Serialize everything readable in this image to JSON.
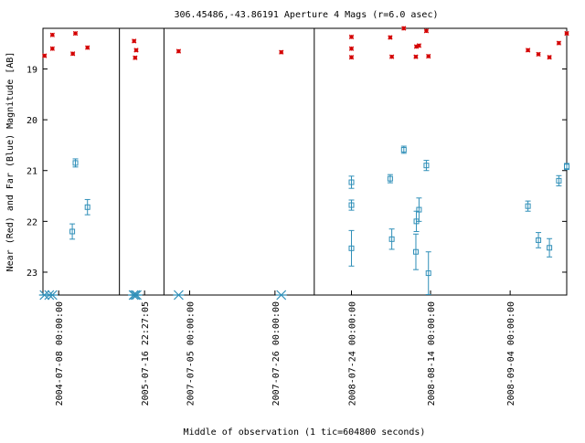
{
  "chart_data": {
    "type": "scatter",
    "title": "306.45486,-43.86191   Aperture 4 Mags (r=6.0 asec)",
    "xlabel": "Middle of observation (1 tic=604800 seconds)",
    "ylabel": "Near (Red) and Far (Blue) Magnitude [AB]",
    "ylim": [
      18.2,
      23.45
    ],
    "y_inverted": true,
    "xlim": [
      0,
      100
    ],
    "y_ticks": [
      19,
      20,
      21,
      22,
      23
    ],
    "x_ticks": [
      {
        "x": 3,
        "label": "2004-07-08 00:00:00"
      },
      {
        "x": 19.4,
        "label": "2005-07-16 22:27:05"
      },
      {
        "x": 28,
        "label": "2007-07-05 00:00:00"
      },
      {
        "x": 44.3,
        "label": "2007-07-26 00:00:00"
      },
      {
        "x": 58.9,
        "label": "2008-07-24 00:00:00"
      },
      {
        "x": 74,
        "label": "2008-08-14 00:00:00"
      },
      {
        "x": 89.2,
        "label": "2008-09-04 00:00:00"
      }
    ],
    "segment_breaks": [
      14.6,
      23.1,
      51.8
    ],
    "series": [
      {
        "name": "Near (Red)",
        "color": "#d40000",
        "marker": "asterisk",
        "points": [
          {
            "x": 0.3,
            "y": 18.74
          },
          {
            "x": 1.8,
            "y": 18.33
          },
          {
            "x": 1.8,
            "y": 18.6
          },
          {
            "x": 5.7,
            "y": 18.7
          },
          {
            "x": 6.2,
            "y": 18.3
          },
          {
            "x": 8.5,
            "y": 18.58
          },
          {
            "x": 17.4,
            "y": 18.45
          },
          {
            "x": 17.6,
            "y": 18.78
          },
          {
            "x": 17.8,
            "y": 18.63
          },
          {
            "x": 25.9,
            "y": 18.65
          },
          {
            "x": 45.5,
            "y": 18.67
          },
          {
            "x": 58.9,
            "y": 18.37
          },
          {
            "x": 58.9,
            "y": 18.6
          },
          {
            "x": 58.9,
            "y": 18.77
          },
          {
            "x": 66.3,
            "y": 18.38
          },
          {
            "x": 66.6,
            "y": 18.76
          },
          {
            "x": 68.9,
            "y": 18.17
          },
          {
            "x": 71.2,
            "y": 18.76
          },
          {
            "x": 71.3,
            "y": 18.56
          },
          {
            "x": 71.8,
            "y": 18.54
          },
          {
            "x": 73.2,
            "y": 18.25
          },
          {
            "x": 73.6,
            "y": 18.75
          },
          {
            "x": 92.6,
            "y": 18.63
          },
          {
            "x": 94.6,
            "y": 18.71
          },
          {
            "x": 96.7,
            "y": 18.77
          },
          {
            "x": 98.5,
            "y": 18.49
          },
          {
            "x": 101,
            "y": 18.3
          }
        ]
      },
      {
        "name": "Far (Blue)",
        "color": "#2f8fb8",
        "marker": "square",
        "points": [
          {
            "x": 5.6,
            "y": 22.2,
            "err": 0.15
          },
          {
            "x": 6.2,
            "y": 20.85,
            "err": 0.08
          },
          {
            "x": 8.5,
            "y": 21.72,
            "err": 0.15
          },
          {
            "x": 58.9,
            "y": 21.23,
            "err": 0.12
          },
          {
            "x": 58.9,
            "y": 21.68,
            "err": 0.1
          },
          {
            "x": 58.9,
            "y": 22.53,
            "err": 0.35
          },
          {
            "x": 66.3,
            "y": 21.16,
            "err": 0.08
          },
          {
            "x": 66.6,
            "y": 22.35,
            "err": 0.2
          },
          {
            "x": 68.9,
            "y": 20.59,
            "err": 0.07
          },
          {
            "x": 71.2,
            "y": 22.6,
            "err": 0.35
          },
          {
            "x": 71.3,
            "y": 22.0,
            "err": 0.2
          },
          {
            "x": 71.8,
            "y": 21.77,
            "err": 0.23
          },
          {
            "x": 73.2,
            "y": 20.9,
            "err": 0.1
          },
          {
            "x": 73.6,
            "y": 23.02,
            "err": 0.42
          },
          {
            "x": 92.6,
            "y": 21.7,
            "err": 0.1
          },
          {
            "x": 94.6,
            "y": 22.37,
            "err": 0.15
          },
          {
            "x": 96.7,
            "y": 22.52,
            "err": 0.18
          },
          {
            "x": 98.5,
            "y": 21.2,
            "err": 0.1
          },
          {
            "x": 101,
            "y": 20.92,
            "err": 0.06
          }
        ]
      },
      {
        "name": "Upper limits",
        "color": "#2f8fb8",
        "marker": "star",
        "points": [
          {
            "x": 0.3,
            "y": 23.45
          },
          {
            "x": 1.2,
            "y": 23.45
          },
          {
            "x": 1.8,
            "y": 23.45
          },
          {
            "x": 17.3,
            "y": 23.45
          },
          {
            "x": 17.6,
            "y": 23.45
          },
          {
            "x": 17.9,
            "y": 23.45
          },
          {
            "x": 25.9,
            "y": 23.45
          },
          {
            "x": 45.5,
            "y": 23.45
          }
        ]
      }
    ]
  }
}
